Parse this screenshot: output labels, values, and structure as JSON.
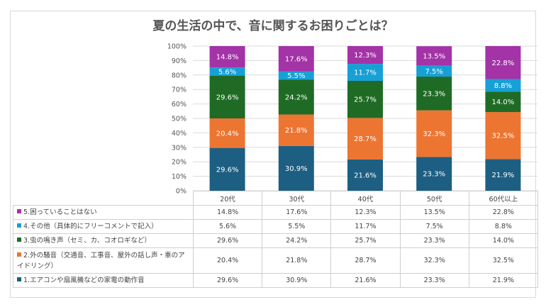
{
  "chart_data": {
    "type": "bar",
    "stacked": "percent",
    "title": "夏の生活の中で、音に関するお困りごとは？",
    "categories": [
      "20代",
      "30代",
      "40代",
      "50代",
      "60代以上"
    ],
    "ylim": [
      0,
      100
    ],
    "y_ticks": [
      "0%",
      "10%",
      "20%",
      "30%",
      "40%",
      "50%",
      "60%",
      "70%",
      "80%",
      "90%",
      "100%"
    ],
    "grid": true,
    "legend": "table-below",
    "series": [
      {
        "name": "1.エアコンや扇風機などの家電の動作音",
        "color": "#1d5f82",
        "values": [
          29.6,
          30.9,
          21.6,
          23.3,
          21.9
        ],
        "labels": [
          "29.6%",
          "30.9%",
          "21.6%",
          "23.3%",
          "21.9%"
        ]
      },
      {
        "name": "2.外の騒音（交通音、工事音、屋外の話し声・車のアイドリング）",
        "color": "#ec7532",
        "values": [
          20.4,
          21.8,
          28.7,
          32.3,
          32.5
        ],
        "labels": [
          "20.4%",
          "21.8%",
          "28.7%",
          "32.3%",
          "32.5%"
        ]
      },
      {
        "name": "3.虫の鳴き声（セミ、カ、コオロギなど）",
        "color": "#1f6b26",
        "values": [
          29.6,
          24.2,
          25.7,
          23.3,
          14.0
        ],
        "labels": [
          "29.6%",
          "24.2%",
          "25.7%",
          "23.3%",
          "14.0%"
        ]
      },
      {
        "name": "4.その他（具体的にフリーコメントで記入）",
        "color": "#17a0d6",
        "values": [
          5.6,
          5.5,
          11.7,
          7.5,
          8.8
        ],
        "labels": [
          "5.6%",
          "5.5%",
          "11.7%",
          "7.5%",
          "8.8%"
        ]
      },
      {
        "name": "5.困っていることはない",
        "color": "#a333a6",
        "values": [
          14.8,
          17.6,
          12.3,
          13.5,
          22.8
        ],
        "labels": [
          "14.8%",
          "17.6%",
          "12.3%",
          "13.5%",
          "22.8%"
        ]
      }
    ]
  }
}
